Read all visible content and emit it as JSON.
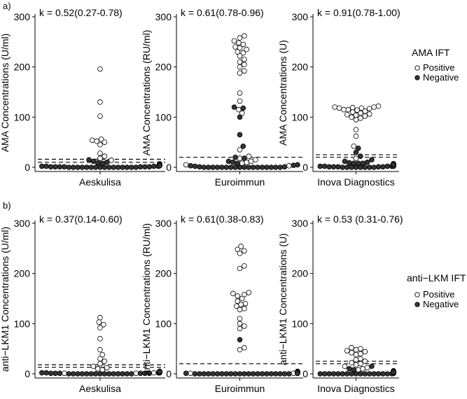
{
  "figure": {
    "panels": [
      {
        "tag": "a)",
        "legend": {
          "title": "AMA IFT",
          "entries": [
            {
              "label": "Positive",
              "fill": "#ffffff"
            },
            {
              "label": "Negative",
              "fill": "#333333"
            }
          ]
        }
      },
      {
        "tag": "b)",
        "legend": {
          "title": "anti−LKM IFT",
          "entries": [
            {
              "label": "Positive",
              "fill": "#ffffff"
            },
            {
              "label": "Negative",
              "fill": "#333333"
            }
          ]
        }
      }
    ]
  },
  "chart_data": [
    {
      "type": "scatter",
      "row": 0,
      "col": 0,
      "ylabel": "AMA Concentrations (U/ml)",
      "category": "Aeskulisa",
      "kappa": "k = 0.52(0.27-0.78)",
      "ylim": [
        0,
        300
      ],
      "yticks": [
        0,
        100,
        200,
        300
      ],
      "cutoffs": [
        10,
        16
      ],
      "positive": [
        196,
        130,
        102,
        56,
        54,
        52,
        50,
        45,
        28,
        22,
        18,
        14
      ],
      "negative": [
        6,
        4,
        3,
        3,
        2,
        2,
        1,
        1,
        1,
        1,
        1,
        0,
        0,
        0,
        0,
        0,
        0,
        0,
        0,
        0,
        0,
        0,
        0,
        2,
        5,
        8,
        9,
        12,
        15,
        10,
        7,
        4,
        3,
        2,
        1,
        1,
        0,
        0,
        0,
        0
      ]
    },
    {
      "type": "scatter",
      "row": 0,
      "col": 1,
      "ylabel": "AMA Concentrations (RU/ml)",
      "category": "Euroimmun",
      "kappa": "k = 0.61(0.78-0.96)",
      "ylim": [
        0,
        300
      ],
      "yticks": [
        0,
        100,
        200,
        300
      ],
      "cutoffs": [
        20
      ],
      "positive": [
        262,
        258,
        252,
        248,
        245,
        240,
        238,
        235,
        230,
        228,
        222,
        215,
        210,
        205,
        200,
        192,
        188,
        148,
        132,
        115,
        108,
        35,
        22,
        18,
        15,
        12,
        10,
        8,
        5,
        3
      ],
      "negative": [
        120,
        118,
        100,
        65,
        42,
        20,
        18,
        12,
        10,
        8,
        5,
        4,
        3,
        2,
        1,
        1,
        0,
        0,
        0,
        0,
        0,
        0,
        0,
        0,
        0,
        0,
        0,
        0,
        0,
        0,
        0,
        0,
        0,
        0
      ]
    },
    {
      "type": "scatter",
      "row": 0,
      "col": 2,
      "ylabel": "AMA Concentrations (U)",
      "category": "Inova Diagnostics",
      "kappa": "k = 0.91(0.78-1.00)",
      "ylim": [
        0,
        300
      ],
      "yticks": [
        0,
        100,
        200,
        300
      ],
      "cutoffs": [
        20,
        25
      ],
      "positive": [
        122,
        120,
        120,
        119,
        118,
        118,
        117,
        115,
        115,
        114,
        112,
        110,
        108,
        106,
        105,
        104,
        102,
        100,
        98,
        95,
        75,
        62,
        42,
        18
      ],
      "negative": [
        38,
        30,
        22,
        15,
        12,
        10,
        9,
        8,
        8,
        7,
        7,
        6,
        6,
        6,
        5,
        5,
        5,
        5,
        4,
        4,
        4,
        4,
        4,
        3,
        3,
        3,
        3,
        3,
        2,
        2,
        2,
        2,
        2,
        1,
        1,
        1,
        1,
        1,
        0,
        0,
        0,
        0,
        0,
        0,
        0,
        0,
        5,
        6,
        7,
        8,
        5
      ]
    },
    {
      "type": "scatter",
      "row": 1,
      "col": 0,
      "ylabel": "anti−LKM1 Concentrations (U/ml)",
      "category": "Aeskulisa",
      "kappa": "k = 0.37(0.14-0.60)",
      "ylim": [
        0,
        300
      ],
      "yticks": [
        0,
        100,
        200,
        300
      ],
      "cutoffs": [
        13,
        18
      ],
      "positive": [
        112,
        103,
        98,
        92,
        70,
        48,
        38,
        30,
        25,
        20,
        15,
        12,
        10,
        8,
        5,
        4,
        3,
        2,
        1,
        1
      ],
      "negative": [
        5,
        4,
        3,
        3,
        3,
        2,
        2,
        2,
        2,
        1,
        1,
        1,
        1,
        1,
        1,
        0,
        0,
        0,
        0,
        0,
        0,
        0,
        0,
        0,
        0,
        0,
        0,
        0,
        0,
        0,
        2,
        3,
        4
      ]
    },
    {
      "type": "scatter",
      "row": 1,
      "col": 1,
      "ylabel": "anti−LKM1 Concentrations (RU/ml)",
      "category": "Euroimmun",
      "kappa": "k = 0.61(0.38-0.83)",
      "ylim": [
        0,
        300
      ],
      "yticks": [
        0,
        100,
        200,
        300
      ],
      "cutoffs": [
        20
      ],
      "positive": [
        254,
        248,
        245,
        240,
        215,
        210,
        162,
        160,
        158,
        155,
        150,
        145,
        140,
        138,
        135,
        130,
        128,
        110,
        100,
        95,
        90,
        52,
        48,
        3,
        2,
        1,
        1
      ],
      "negative": [
        68,
        5,
        4,
        3,
        3,
        2,
        2,
        2,
        1,
        1,
        1,
        1,
        0,
        0,
        0,
        0,
        0,
        0,
        0,
        0,
        0,
        0,
        0,
        0,
        0,
        0,
        0,
        0,
        0,
        0,
        0,
        0,
        0,
        0
      ]
    },
    {
      "type": "scatter",
      "row": 1,
      "col": 2,
      "ylabel": "anti−LKM1 Concentrations (U)",
      "category": "Inova Diagnostics",
      "kappa": "k = 0.53 (0.31-0.76)",
      "ylim": [
        0,
        300
      ],
      "yticks": [
        0,
        100,
        200,
        300
      ],
      "cutoffs": [
        20,
        25
      ],
      "positive": [
        52,
        50,
        48,
        46,
        44,
        42,
        40,
        38,
        30,
        28,
        25,
        22,
        20,
        18,
        15,
        12,
        10,
        8,
        5,
        3,
        2
      ],
      "negative": [
        15,
        10,
        8,
        6,
        5,
        4,
        3,
        3,
        2,
        2,
        2,
        1,
        1,
        1,
        1,
        0,
        0,
        0,
        0,
        0,
        0,
        0,
        0,
        0,
        0,
        0,
        0,
        0,
        0,
        0,
        0,
        0,
        2,
        3
      ]
    }
  ]
}
